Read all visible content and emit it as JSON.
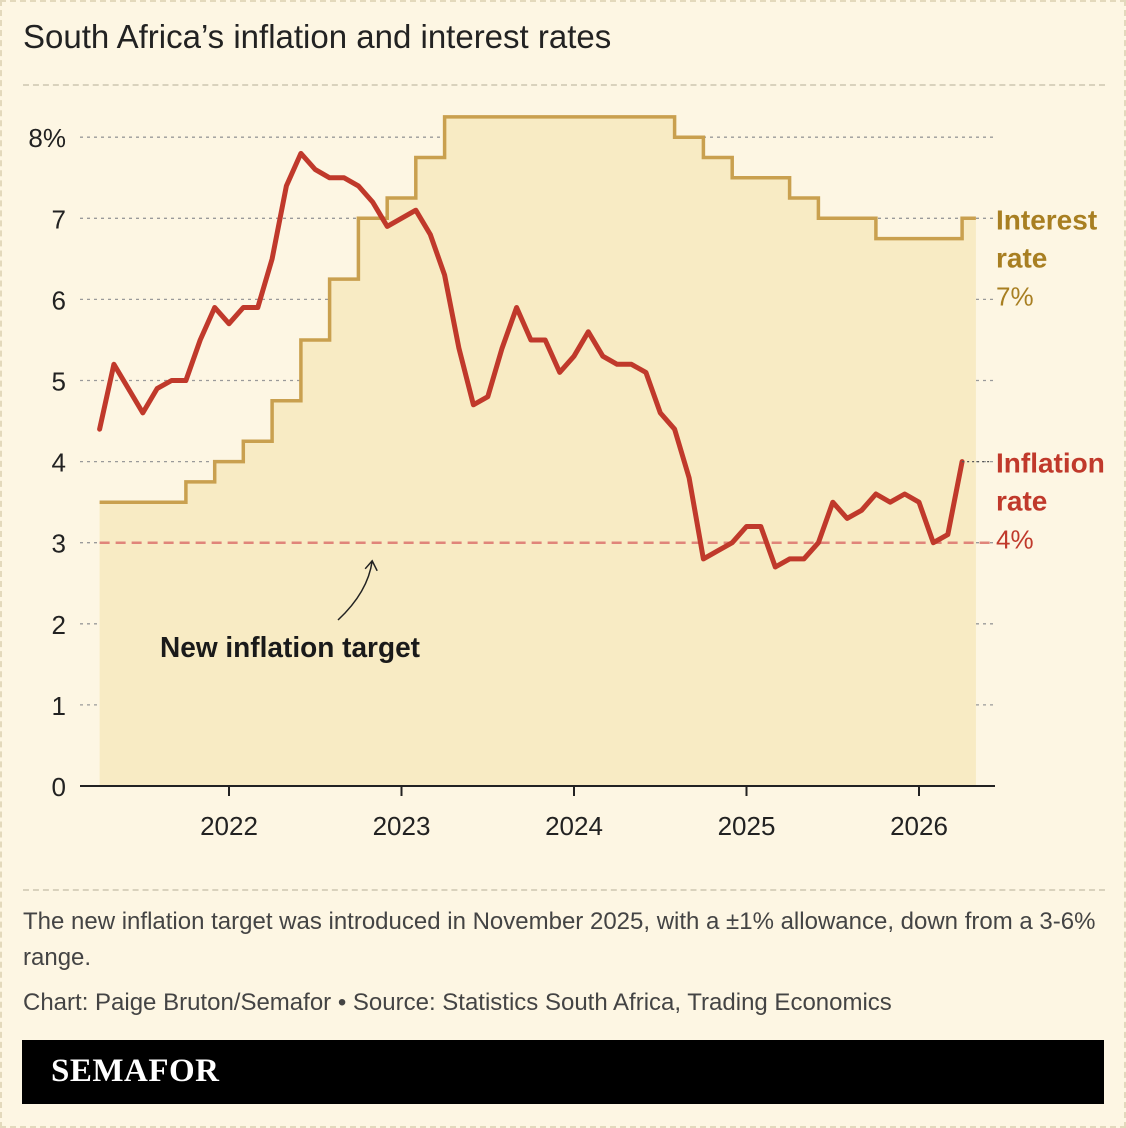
{
  "title": "South Africa’s inflation and interest rates",
  "note": "The new inflation target was introduced in November 2025, with a ±1% allowance, down from a 3-6% range.",
  "credit": "Chart: Paige Bruton/Semafor • Source: Statistics South Africa, Trading Economics",
  "brand": "SEMAFOR",
  "colors": {
    "background": "#fdf6e3",
    "interest": "#c9a04f",
    "interest_fill": "#f8ebc4",
    "interest_label": "#a87f22",
    "inflation": "#c0392b",
    "target_line": "#e0857a"
  },
  "chart_data": {
    "type": "line",
    "title": "South Africa’s inflation and interest rates",
    "xlabel": "",
    "ylabel": "",
    "xlim": [
      2021.25,
      2026.33
    ],
    "ylim": [
      0,
      8
    ],
    "x_ticks": [
      2022,
      2023,
      2024,
      2025,
      2026
    ],
    "x_tick_labels": [
      "2022",
      "2023",
      "2024",
      "2025",
      "2026"
    ],
    "y_ticks": [
      0,
      1,
      2,
      3,
      4,
      5,
      6,
      7,
      8
    ],
    "y_tick_labels": [
      "0",
      "1",
      "2",
      "3",
      "4",
      "5",
      "6",
      "7",
      "8%"
    ],
    "grid": true,
    "series": [
      {
        "name": "Interest rate",
        "label_lines": [
          "Interest",
          "rate"
        ],
        "value_label": "7%",
        "style": "step",
        "filled": true,
        "x": [
          2021.25,
          2021.75,
          2021.917,
          2022.083,
          2022.25,
          2022.417,
          2022.583,
          2022.75,
          2022.917,
          2023.083,
          2023.25,
          2024.583,
          2024.75,
          2024.917,
          2025.083,
          2025.25,
          2025.417,
          2025.75,
          2026.083,
          2026.25,
          2026.33
        ],
        "values": [
          3.5,
          3.75,
          4.0,
          4.25,
          4.75,
          5.5,
          6.25,
          7.0,
          7.25,
          7.75,
          8.25,
          8.0,
          7.75,
          7.5,
          7.5,
          7.25,
          7.0,
          6.75,
          6.75,
          7.0,
          7.0
        ]
      },
      {
        "name": "Inflation rate",
        "label_lines": [
          "Inflation",
          "rate"
        ],
        "value_label": "4%",
        "style": "line",
        "x": [
          2021.25,
          2021.333,
          2021.417,
          2021.5,
          2021.583,
          2021.667,
          2021.75,
          2021.833,
          2021.917,
          2022.0,
          2022.083,
          2022.167,
          2022.25,
          2022.333,
          2022.417,
          2022.5,
          2022.583,
          2022.667,
          2022.75,
          2022.833,
          2022.917,
          2023.0,
          2023.083,
          2023.167,
          2023.25,
          2023.333,
          2023.417,
          2023.5,
          2023.583,
          2023.667,
          2023.75,
          2023.833,
          2023.917,
          2024.0,
          2024.083,
          2024.167,
          2024.25,
          2024.333,
          2024.417,
          2024.5,
          2024.583,
          2024.667,
          2024.75,
          2024.833,
          2024.917,
          2025.0,
          2025.083,
          2025.167,
          2025.25,
          2025.333,
          2025.417,
          2025.5,
          2025.583,
          2025.667,
          2025.75,
          2025.833,
          2025.917,
          2026.0,
          2026.083,
          2026.167,
          2026.25
        ],
        "values": [
          4.4,
          5.2,
          4.9,
          4.6,
          4.9,
          5.0,
          5.0,
          5.5,
          5.9,
          5.7,
          5.9,
          5.9,
          6.5,
          7.4,
          7.8,
          7.6,
          7.5,
          7.5,
          7.4,
          7.2,
          6.9,
          7.0,
          7.1,
          6.8,
          6.3,
          5.4,
          4.7,
          4.8,
          5.4,
          5.9,
          5.5,
          5.5,
          5.1,
          5.3,
          5.6,
          5.3,
          5.2,
          5.2,
          5.1,
          4.6,
          4.4,
          3.8,
          2.8,
          2.9,
          3.0,
          3.2,
          3.2,
          2.7,
          2.8,
          2.8,
          3.0,
          3.5,
          3.3,
          3.4,
          3.6,
          3.5,
          3.6,
          3.5,
          3.0,
          3.1,
          4.0
        ]
      }
    ],
    "reference_line": {
      "value": 3,
      "style": "dashed"
    },
    "annotation": {
      "text": "New inflation target",
      "arrow_to": {
        "x": 2022.83,
        "y": 2.9
      }
    }
  }
}
